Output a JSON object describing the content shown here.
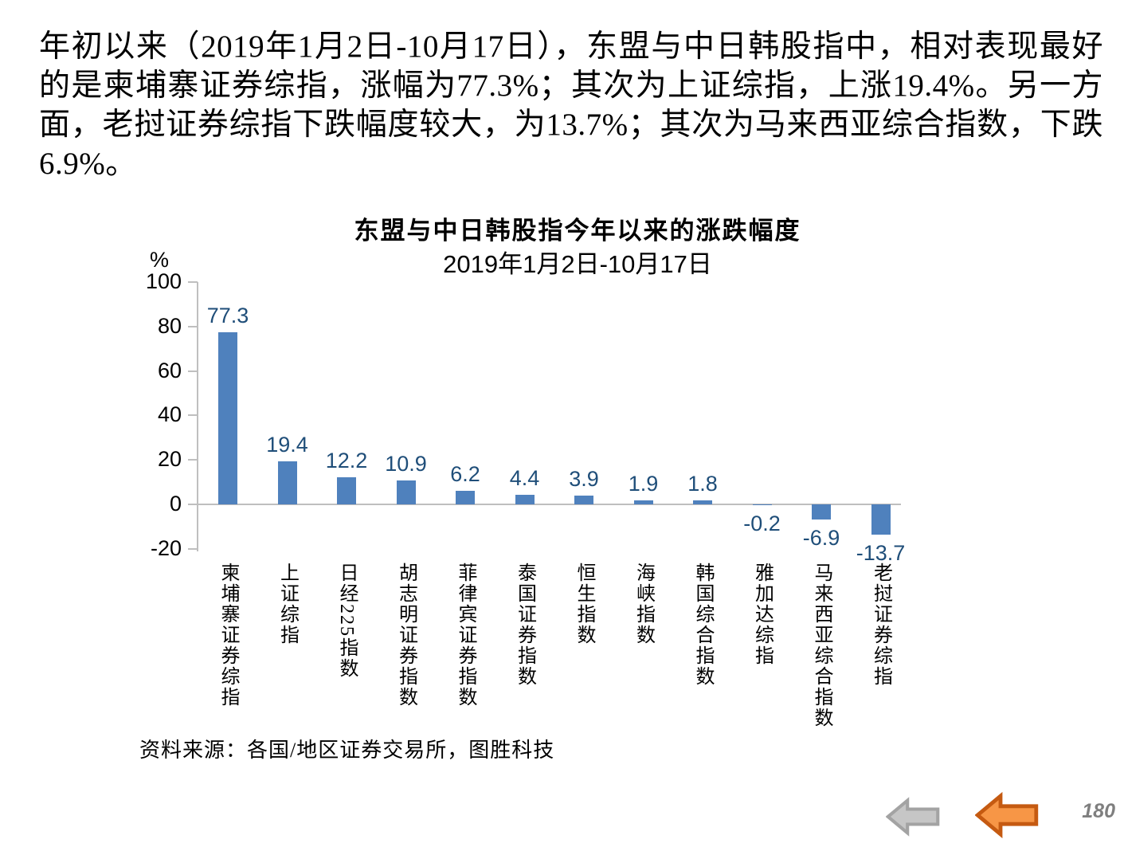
{
  "page": {
    "paragraph": "年初以来（2019年1月2日-10月17日），东盟与中日韩股指中，相对表现最好的是柬埔寨证券综指，涨幅为77.3%；其次为上证综指，上涨19.4%。另一方面，老挝证券综指下跌幅度较大，为13.7%；其次为马来西亚综合指数，下跌6.9%。",
    "source": "资料来源：各国/地区证券交易所，图胜科技",
    "page_number": "180"
  },
  "chart_data": {
    "type": "bar",
    "title": "东盟与中日韩股指今年以来的涨跌幅度",
    "subtitle": "2019年1月2日-10月17日",
    "unit_label": "%",
    "categories": [
      "柬埔寨证券综指",
      "上证综指",
      "日经225指数",
      "胡志明证券指数",
      "菲律宾证券指数",
      "泰国证券指数",
      "恒生指数",
      "海峡指数",
      "韩国综合指数",
      "雅加达综指",
      "马来西亚综合指数",
      "老挝证券综指"
    ],
    "values": [
      77.3,
      19.4,
      12.2,
      10.9,
      6.2,
      4.4,
      3.9,
      1.9,
      1.8,
      -0.2,
      -6.9,
      -13.7
    ],
    "y_ticks": [
      100,
      80,
      60,
      40,
      20,
      0,
      -20
    ],
    "ylim": [
      -20,
      100
    ],
    "xlabel": "",
    "ylabel": "%",
    "grid": "off",
    "legend": "none",
    "data_labels": "on",
    "bar_color": "#4F81BD",
    "label_color": "#1F4E79",
    "axis_color": "#BFBFBF"
  },
  "footer": {
    "back_arrow_gray": {
      "name": "back-arrow-inactive",
      "fill": "#C6C6C6",
      "stroke": "#A3A3A3"
    },
    "back_arrow_orange": {
      "name": "back-arrow-active",
      "fill": "#F79646",
      "stroke": "#C55A11"
    }
  }
}
